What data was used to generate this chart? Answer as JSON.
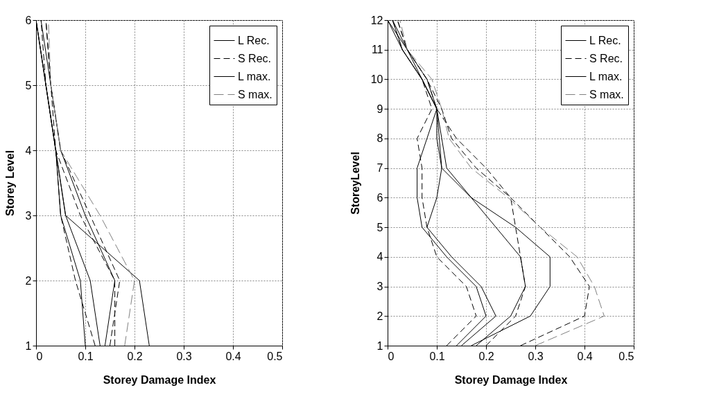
{
  "chart_data": [
    {
      "type": "line",
      "xlabel": "Storey Damage Index",
      "ylabel": "Storey Level",
      "xlim": [
        0,
        0.5
      ],
      "xticks": [
        0,
        0.1,
        0.2,
        0.3,
        0.4,
        0.5
      ],
      "ylim": [
        1,
        6
      ],
      "yticks": [
        1,
        2,
        3,
        4,
        5,
        6
      ],
      "grid": true,
      "legend": "top right",
      "series": [
        {
          "name": "L Rec.",
          "color": "#000000",
          "line_style": "solid",
          "x": [
            0.13,
            0.11,
            0.06,
            0.04,
            0.02,
            0
          ],
          "values": [
            1,
            2,
            3,
            4,
            5,
            6
          ]
        },
        {
          "color": "#000000",
          "line_style": "solid",
          "x": [
            0.1,
            0.09,
            0.05,
            0.04,
            0.02,
            0
          ],
          "values": [
            1,
            2,
            3,
            4,
            5,
            6
          ]
        },
        {
          "color": "#000000",
          "line_style": "solid",
          "x": [
            0.14,
            0.16,
            0.1,
            0.05,
            0.03,
            0.01
          ],
          "values": [
            1,
            2,
            3,
            4,
            5,
            6
          ]
        },
        {
          "name": "S Rec.",
          "color": "#000000",
          "line_style": "dashed",
          "x": [
            0.15,
            0.17,
            0.11,
            0.05,
            0.03,
            0.02
          ],
          "values": [
            1,
            2,
            3,
            4,
            5,
            6
          ]
        },
        {
          "color": "#000000",
          "line_style": "dashed",
          "x": [
            0.16,
            0.16,
            0.09,
            0.04,
            0.03,
            0.02
          ],
          "values": [
            1,
            2,
            3,
            4,
            5,
            6
          ]
        },
        {
          "color": "#000000",
          "line_style": "dashed",
          "x": [
            0.12,
            0.08,
            0.05,
            0.04,
            0.02,
            0.01
          ],
          "values": [
            1,
            2,
            3,
            4,
            5,
            6
          ]
        },
        {
          "name": "L max.",
          "color": "#000000",
          "line_style": "solid",
          "x": [
            0.23,
            0.21,
            0.06,
            0.04,
            0.02,
            0
          ],
          "values": [
            1,
            2,
            3,
            4,
            5,
            6
          ]
        },
        {
          "name": "S max.",
          "color": "#808080",
          "line_style": "dashed",
          "x": [
            0.18,
            0.2,
            0.13,
            0.05,
            0.03,
            0.025
          ],
          "values": [
            1,
            2,
            3,
            4,
            5,
            6
          ]
        }
      ]
    },
    {
      "type": "line",
      "xlabel": "Storey Damage Index",
      "ylabel": "StoreyLevel",
      "xlim": [
        0,
        0.5
      ],
      "xticks": [
        0,
        0.1,
        0.2,
        0.3,
        0.4,
        0.5
      ],
      "ylim": [
        1,
        12
      ],
      "yticks": [
        1,
        2,
        3,
        4,
        5,
        6,
        7,
        8,
        9,
        10,
        11,
        12
      ],
      "grid": true,
      "legend": "top right",
      "series": [
        {
          "name": "L Rec.",
          "color": "#000000",
          "line_style": "solid",
          "x": [
            0.15,
            0.22,
            0.19,
            0.13,
            0.08,
            0.1,
            0.11,
            0.1,
            0.1,
            0.07,
            0.03,
            0
          ],
          "values": [
            1,
            2,
            3,
            4,
            5,
            6,
            7,
            8,
            9,
            10,
            11,
            12
          ]
        },
        {
          "color": "#000000",
          "line_style": "solid",
          "x": [
            0.18,
            0.25,
            0.28,
            0.27,
            0.22,
            0.17,
            0.12,
            0.11,
            0.1,
            0.08,
            0.04,
            0.01
          ],
          "values": [
            1,
            2,
            3,
            4,
            5,
            6,
            7,
            8,
            9,
            10,
            11,
            12
          ]
        },
        {
          "color": "#000000",
          "line_style": "solid",
          "x": [
            0.14,
            0.2,
            0.18,
            0.12,
            0.07,
            0.06,
            0.06,
            0.08,
            0.1,
            0.07,
            0.03,
            0.01
          ],
          "values": [
            1,
            2,
            3,
            4,
            5,
            6,
            7,
            8,
            9,
            10,
            11,
            12
          ]
        },
        {
          "name": "S Rec.",
          "color": "#000000",
          "line_style": "dashed",
          "x": [
            0.12,
            0.18,
            0.16,
            0.1,
            0.08,
            0.07,
            0.07,
            0.06,
            0.09,
            0.07,
            0.03,
            0.01
          ],
          "values": [
            1,
            2,
            3,
            4,
            5,
            6,
            7,
            8,
            9,
            10,
            11,
            12
          ]
        },
        {
          "color": "#000000",
          "line_style": "dashed",
          "x": [
            0.2,
            0.26,
            0.28,
            0.27,
            0.26,
            0.25,
            0.2,
            0.14,
            0.1,
            0.08,
            0.04,
            0.02
          ],
          "values": [
            1,
            2,
            3,
            4,
            5,
            6,
            7,
            8,
            9,
            10,
            11,
            12
          ]
        },
        {
          "color": "#000000",
          "line_style": "dashed",
          "x": [
            0.27,
            0.4,
            0.41,
            0.37,
            0.31,
            0.25,
            0.18,
            0.13,
            0.11,
            0.08,
            0.04,
            0.02
          ],
          "values": [
            1,
            2,
            3,
            4,
            5,
            6,
            7,
            8,
            9,
            10,
            11,
            12
          ]
        },
        {
          "name": "L max.",
          "color": "#000000",
          "line_style": "solid",
          "x": [
            0.17,
            0.29,
            0.33,
            0.33,
            0.26,
            0.17,
            0.11,
            0.105,
            0.1,
            0.07,
            0.04,
            0
          ],
          "values": [
            1,
            2,
            3,
            4,
            5,
            6,
            7,
            8,
            9,
            10,
            11,
            12
          ]
        },
        {
          "name": "S max.",
          "color": "#808080",
          "line_style": "dashed",
          "x": [
            0.3,
            0.44,
            0.42,
            0.385,
            0.31,
            0.245,
            0.17,
            0.125,
            0.11,
            0.09,
            0.04,
            0.025
          ],
          "values": [
            1,
            2,
            3,
            4,
            5,
            6,
            7,
            8,
            9,
            10,
            11,
            12
          ]
        }
      ]
    }
  ]
}
